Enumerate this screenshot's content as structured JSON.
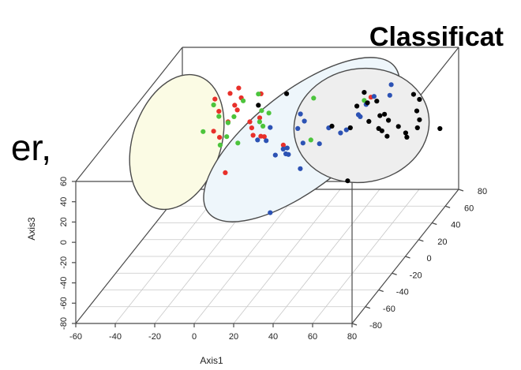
{
  "overlay": {
    "title_fragment": "Classificat",
    "text_fragment": "er,"
  },
  "colors": {
    "red": "#e8302a",
    "green": "#4cc43c",
    "blue": "#2c52b4",
    "black": "#000000",
    "ellipse_yellow": "#fbfbe4",
    "ellipse_blue": "#eef6fb",
    "ellipse_gray": "#eeeeee",
    "ellipse_stroke": "#4a4a4a"
  },
  "chart_data": {
    "type": "scatter",
    "projection": "3d",
    "title": "",
    "xlabel": "Axis1",
    "ylabel": "Axis3",
    "zlabel": "",
    "xlim": [
      -60,
      80
    ],
    "ylim": [
      -80,
      60
    ],
    "zlim": [
      -80,
      80
    ],
    "x_ticks": [
      "-60",
      "-40",
      "-20",
      "0",
      "20",
      "40",
      "60",
      "80"
    ],
    "y_ticks": [
      "-80",
      "-60",
      "-40",
      "-20",
      "0",
      "20",
      "40",
      "60"
    ],
    "z_ticks": [
      "-80",
      "-60",
      "-40",
      "-20",
      "0",
      "20",
      "40",
      "60",
      "80"
    ],
    "grid": true,
    "series": [
      {
        "color": "red",
        "points": [
          [
            -30,
            42,
            40
          ],
          [
            -25,
            41,
            48
          ],
          [
            -22,
            43,
            52
          ],
          [
            -18,
            40,
            44
          ],
          [
            -20,
            36,
            40
          ],
          [
            -10,
            39,
            50
          ],
          [
            -28,
            30,
            40
          ],
          [
            -20,
            28,
            44
          ],
          [
            -24,
            18,
            42
          ],
          [
            -12,
            12,
            42
          ],
          [
            -30,
            12,
            38
          ],
          [
            -27,
            6,
            38
          ],
          [
            -15,
            13,
            48
          ],
          [
            -10,
            8,
            38
          ],
          [
            -5,
            5,
            40
          ],
          [
            -10,
            17,
            48
          ],
          [
            45,
            34,
            52
          ],
          [
            -2,
            17,
            26
          ],
          [
            6,
            0,
            36
          ],
          [
            -18,
            -14,
            20
          ]
        ]
      },
      {
        "color": "green",
        "points": [
          [
            -8,
            47,
            40
          ],
          [
            -15,
            42,
            38
          ],
          [
            -32,
            33,
            44
          ],
          [
            -19,
            28,
            36
          ],
          [
            -22,
            22,
            36
          ],
          [
            -4,
            25,
            44
          ],
          [
            -30,
            20,
            46
          ],
          [
            -5,
            17,
            38
          ],
          [
            -36,
            10,
            40
          ],
          [
            -22,
            10,
            34
          ],
          [
            -8,
            18,
            42
          ],
          [
            -15,
            7,
            30
          ],
          [
            -26,
            0,
            36
          ],
          [
            -5,
            34,
            36
          ],
          [
            18,
            38,
            46
          ],
          [
            24,
            15,
            24
          ],
          [
            47,
            44,
            36
          ]
        ]
      },
      {
        "color": "blue",
        "points": [
          [
            27,
            12,
            42
          ],
          [
            50,
            43,
            42
          ],
          [
            35,
            12,
            36
          ],
          [
            -2,
            14,
            40
          ],
          [
            12,
            24,
            44
          ],
          [
            16,
            22,
            38
          ],
          [
            14,
            18,
            34
          ],
          [
            40,
            20,
            48
          ],
          [
            45,
            28,
            36
          ],
          [
            12,
            7,
            24
          ],
          [
            14,
            4,
            20
          ],
          [
            18,
            7,
            30
          ],
          [
            -5,
            10,
            30
          ],
          [
            -2,
            6,
            34
          ],
          [
            6,
            0,
            24
          ],
          [
            8,
            1,
            30
          ],
          [
            10,
            -2,
            28
          ],
          [
            25,
            3,
            34
          ],
          [
            20,
            -10,
            20
          ],
          [
            58,
            53,
            44
          ],
          [
            62,
            54,
            30
          ],
          [
            50,
            45,
            30
          ],
          [
            40,
            20,
            30
          ],
          [
            -2,
            -70,
            40
          ]
        ]
      },
      {
        "color": "black",
        "points": [
          [
            5,
            44,
            44
          ],
          [
            -8,
            36,
            40
          ],
          [
            32,
            22,
            32
          ],
          [
            42,
            22,
            30
          ],
          [
            52,
            40,
            40
          ],
          [
            48,
            20,
            40
          ],
          [
            50,
            45,
            32
          ],
          [
            72,
            50,
            36
          ],
          [
            60,
            37,
            28
          ],
          [
            75,
            45,
            36
          ],
          [
            57,
            34,
            30
          ],
          [
            62,
            31,
            28
          ],
          [
            75,
            37,
            32
          ],
          [
            60,
            24,
            24
          ],
          [
            62,
            17,
            26
          ],
          [
            75,
            25,
            36
          ],
          [
            76,
            22,
            30
          ],
          [
            68,
            12,
            36
          ],
          [
            72,
            16,
            26
          ],
          [
            82,
            8,
            46
          ],
          [
            65,
            20,
            34
          ],
          [
            55,
            18,
            34
          ],
          [
            44,
            -22,
            20
          ],
          [
            45,
            47,
            42
          ],
          [
            46,
            45,
            28
          ]
        ]
      }
    ],
    "annotations": [
      "three ellipses enclose the yellow (red/green), light-blue (blue) and gray (black) clusters"
    ]
  }
}
